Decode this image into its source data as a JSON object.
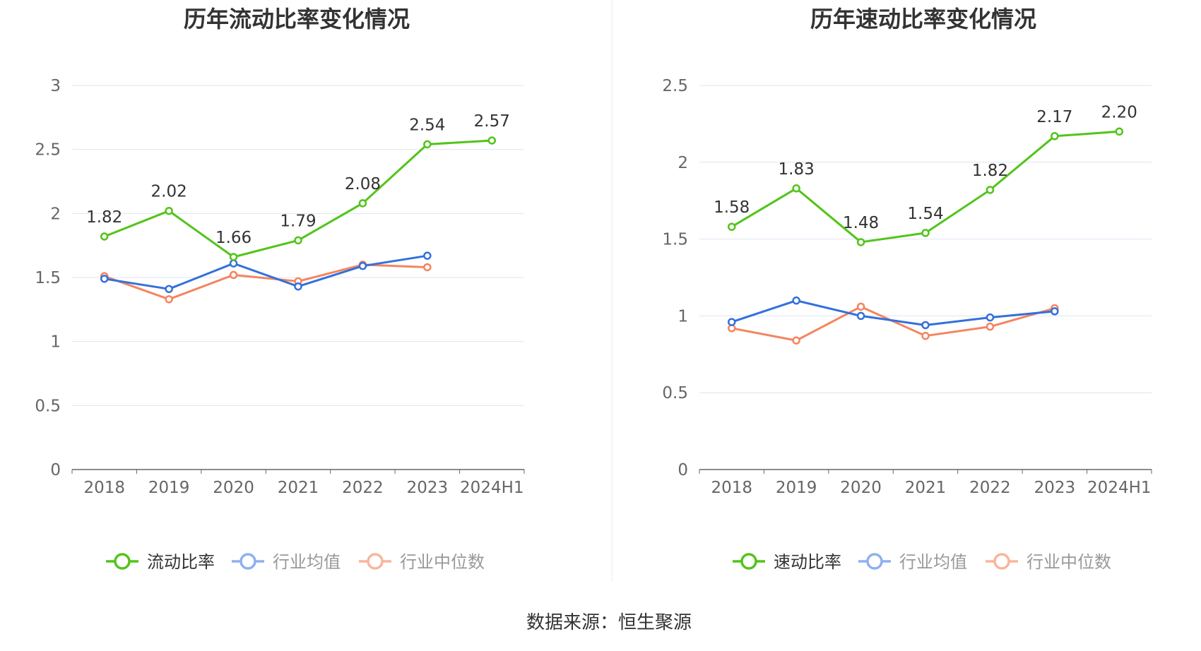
{
  "source": "数据来源：恒生聚源",
  "colors": {
    "primary": "#52c41a",
    "avg": "#3370db",
    "median": "#f5845f",
    "avg_legend": "#8fb0ee",
    "median_legend": "#f9b59c",
    "grid": "#dfe4f2",
    "axis": "#666666"
  },
  "chart_data": [
    {
      "type": "line",
      "title": "历年流动比率变化情况",
      "categories": [
        "2018",
        "2019",
        "2020",
        "2021",
        "2022",
        "2023",
        "2024H1"
      ],
      "ylim": [
        0,
        3
      ],
      "yticks": [
        0,
        0.5,
        1,
        1.5,
        2,
        2.5,
        3
      ],
      "ytick_labels": [
        "0",
        "0.5",
        "1",
        "1.5",
        "2",
        "2.5",
        "3"
      ],
      "series": [
        {
          "name": "流动比率",
          "values": [
            1.82,
            2.02,
            1.66,
            1.79,
            2.08,
            2.54,
            2.57
          ],
          "labels": [
            "1.82",
            "2.02",
            "1.66",
            "1.79",
            "2.08",
            "2.54",
            "2.57"
          ]
        },
        {
          "name": "行业均值",
          "values": [
            1.49,
            1.41,
            1.61,
            1.43,
            1.59,
            1.67,
            null
          ]
        },
        {
          "name": "行业中位数",
          "values": [
            1.51,
            1.33,
            1.52,
            1.47,
            1.6,
            1.58,
            null
          ]
        }
      ]
    },
    {
      "type": "line",
      "title": "历年速动比率变化情况",
      "categories": [
        "2018",
        "2019",
        "2020",
        "2021",
        "2022",
        "2023",
        "2024H1"
      ],
      "ylim": [
        0,
        2.5
      ],
      "yticks": [
        0,
        0.5,
        1,
        1.5,
        2,
        2.5
      ],
      "ytick_labels": [
        "0",
        "0.5",
        "1",
        "1.5",
        "2",
        "2.5"
      ],
      "series": [
        {
          "name": "速动比率",
          "values": [
            1.58,
            1.83,
            1.48,
            1.54,
            1.82,
            2.17,
            2.2
          ],
          "labels": [
            "1.58",
            "1.83",
            "1.48",
            "1.54",
            "1.82",
            "2.17",
            "2.20"
          ]
        },
        {
          "name": "行业均值",
          "values": [
            0.96,
            1.1,
            1.0,
            0.94,
            0.99,
            1.03,
            null
          ]
        },
        {
          "name": "行业中位数",
          "values": [
            0.92,
            0.84,
            1.06,
            0.87,
            0.93,
            1.05,
            null
          ]
        }
      ]
    }
  ]
}
